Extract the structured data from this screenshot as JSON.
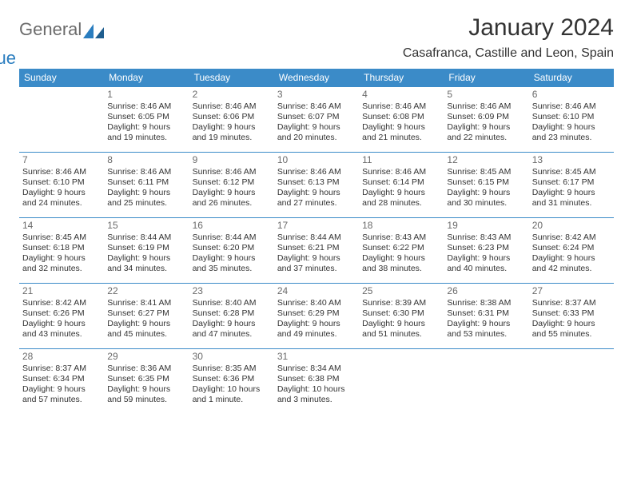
{
  "logo": {
    "word1": "General",
    "word2": "Blue"
  },
  "title": {
    "month": "January 2024",
    "location": "Casafranca, Castille and Leon, Spain"
  },
  "colors": {
    "header_bg": "#3b8bc8",
    "header_fg": "#ffffff",
    "rule": "#3b8bc8",
    "text": "#333333",
    "muted": "#6b6b6b"
  },
  "weekdays": [
    "Sunday",
    "Monday",
    "Tuesday",
    "Wednesday",
    "Thursday",
    "Friday",
    "Saturday"
  ],
  "first_weekday_index": 1,
  "days": [
    {
      "n": 1,
      "sr": "8:46 AM",
      "ss": "6:05 PM",
      "dl": "9 hours and 19 minutes."
    },
    {
      "n": 2,
      "sr": "8:46 AM",
      "ss": "6:06 PM",
      "dl": "9 hours and 19 minutes."
    },
    {
      "n": 3,
      "sr": "8:46 AM",
      "ss": "6:07 PM",
      "dl": "9 hours and 20 minutes."
    },
    {
      "n": 4,
      "sr": "8:46 AM",
      "ss": "6:08 PM",
      "dl": "9 hours and 21 minutes."
    },
    {
      "n": 5,
      "sr": "8:46 AM",
      "ss": "6:09 PM",
      "dl": "9 hours and 22 minutes."
    },
    {
      "n": 6,
      "sr": "8:46 AM",
      "ss": "6:10 PM",
      "dl": "9 hours and 23 minutes."
    },
    {
      "n": 7,
      "sr": "8:46 AM",
      "ss": "6:10 PM",
      "dl": "9 hours and 24 minutes."
    },
    {
      "n": 8,
      "sr": "8:46 AM",
      "ss": "6:11 PM",
      "dl": "9 hours and 25 minutes."
    },
    {
      "n": 9,
      "sr": "8:46 AM",
      "ss": "6:12 PM",
      "dl": "9 hours and 26 minutes."
    },
    {
      "n": 10,
      "sr": "8:46 AM",
      "ss": "6:13 PM",
      "dl": "9 hours and 27 minutes."
    },
    {
      "n": 11,
      "sr": "8:46 AM",
      "ss": "6:14 PM",
      "dl": "9 hours and 28 minutes."
    },
    {
      "n": 12,
      "sr": "8:45 AM",
      "ss": "6:15 PM",
      "dl": "9 hours and 30 minutes."
    },
    {
      "n": 13,
      "sr": "8:45 AM",
      "ss": "6:17 PM",
      "dl": "9 hours and 31 minutes."
    },
    {
      "n": 14,
      "sr": "8:45 AM",
      "ss": "6:18 PM",
      "dl": "9 hours and 32 minutes."
    },
    {
      "n": 15,
      "sr": "8:44 AM",
      "ss": "6:19 PM",
      "dl": "9 hours and 34 minutes."
    },
    {
      "n": 16,
      "sr": "8:44 AM",
      "ss": "6:20 PM",
      "dl": "9 hours and 35 minutes."
    },
    {
      "n": 17,
      "sr": "8:44 AM",
      "ss": "6:21 PM",
      "dl": "9 hours and 37 minutes."
    },
    {
      "n": 18,
      "sr": "8:43 AM",
      "ss": "6:22 PM",
      "dl": "9 hours and 38 minutes."
    },
    {
      "n": 19,
      "sr": "8:43 AM",
      "ss": "6:23 PM",
      "dl": "9 hours and 40 minutes."
    },
    {
      "n": 20,
      "sr": "8:42 AM",
      "ss": "6:24 PM",
      "dl": "9 hours and 42 minutes."
    },
    {
      "n": 21,
      "sr": "8:42 AM",
      "ss": "6:26 PM",
      "dl": "9 hours and 43 minutes."
    },
    {
      "n": 22,
      "sr": "8:41 AM",
      "ss": "6:27 PM",
      "dl": "9 hours and 45 minutes."
    },
    {
      "n": 23,
      "sr": "8:40 AM",
      "ss": "6:28 PM",
      "dl": "9 hours and 47 minutes."
    },
    {
      "n": 24,
      "sr": "8:40 AM",
      "ss": "6:29 PM",
      "dl": "9 hours and 49 minutes."
    },
    {
      "n": 25,
      "sr": "8:39 AM",
      "ss": "6:30 PM",
      "dl": "9 hours and 51 minutes."
    },
    {
      "n": 26,
      "sr": "8:38 AM",
      "ss": "6:31 PM",
      "dl": "9 hours and 53 minutes."
    },
    {
      "n": 27,
      "sr": "8:37 AM",
      "ss": "6:33 PM",
      "dl": "9 hours and 55 minutes."
    },
    {
      "n": 28,
      "sr": "8:37 AM",
      "ss": "6:34 PM",
      "dl": "9 hours and 57 minutes."
    },
    {
      "n": 29,
      "sr": "8:36 AM",
      "ss": "6:35 PM",
      "dl": "9 hours and 59 minutes."
    },
    {
      "n": 30,
      "sr": "8:35 AM",
      "ss": "6:36 PM",
      "dl": "10 hours and 1 minute."
    },
    {
      "n": 31,
      "sr": "8:34 AM",
      "ss": "6:38 PM",
      "dl": "10 hours and 3 minutes."
    }
  ],
  "labels": {
    "sunrise": "Sunrise:",
    "sunset": "Sunset:",
    "daylight": "Daylight:"
  }
}
